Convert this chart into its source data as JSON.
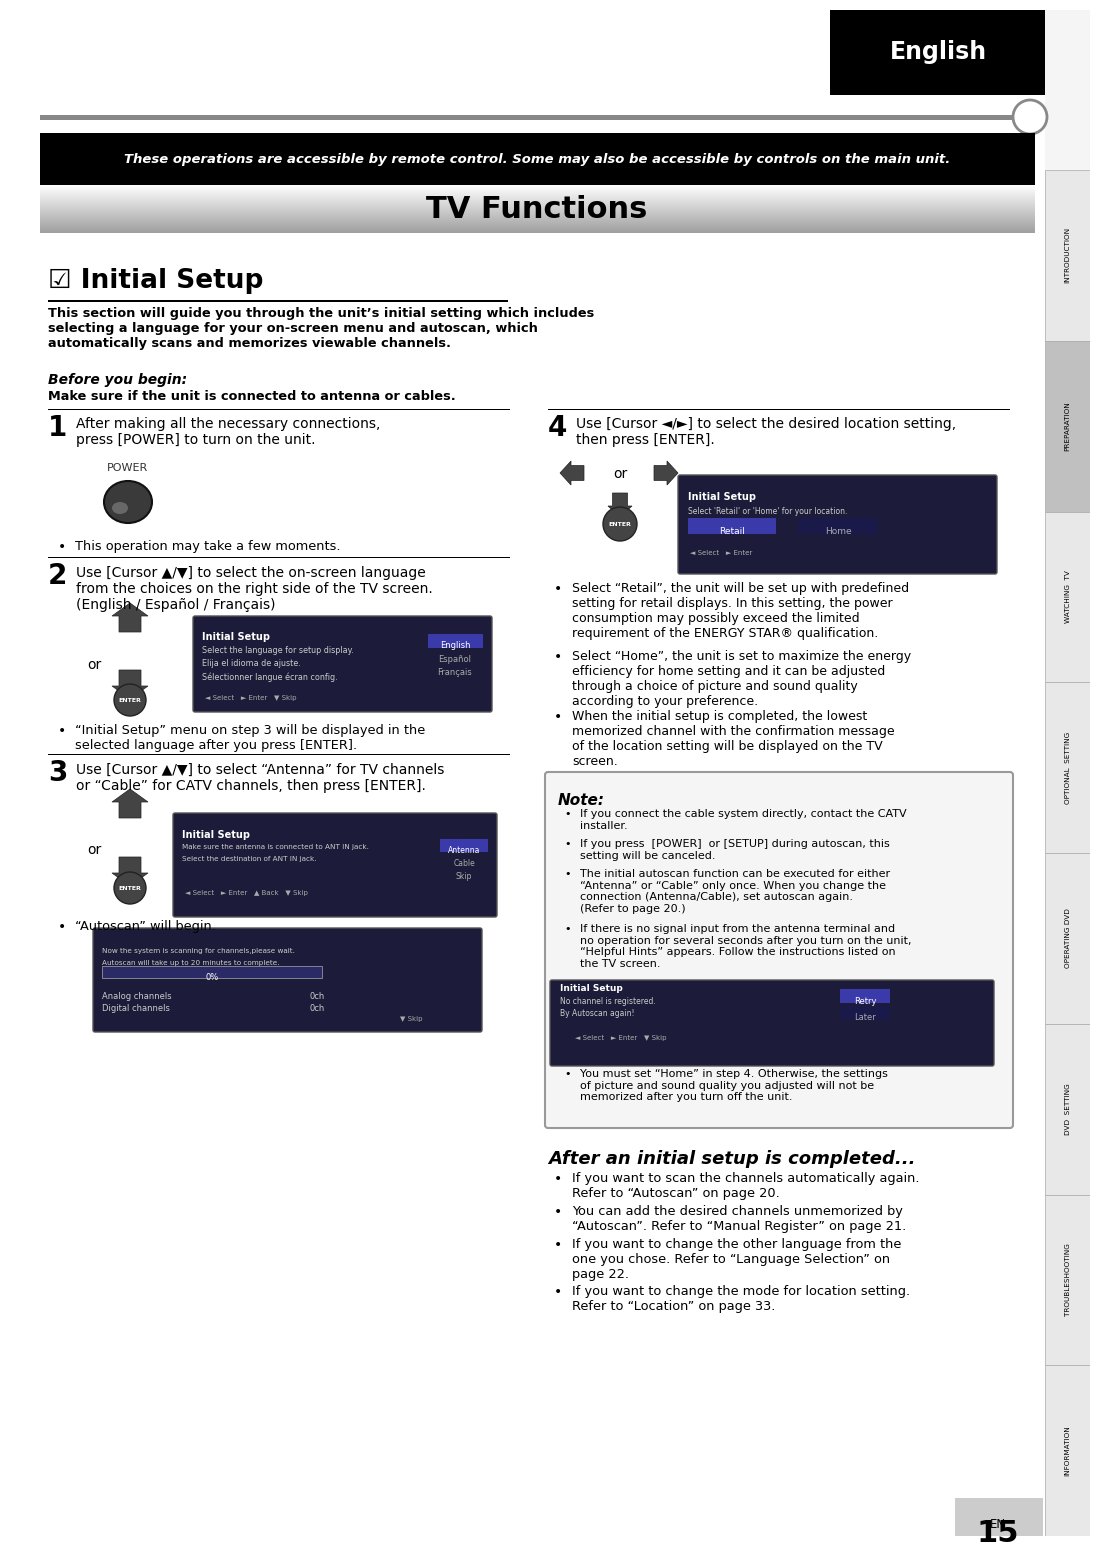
{
  "page_bg": "#ffffff",
  "sidebar_labels": [
    "INTRODUCTION",
    "PREPARATION",
    "WATCHING  TV",
    "OPTIONAL  SETTING",
    "OPERATING DVD",
    "DVD  SETTING",
    "TROUBLESHOOTING",
    "INFORMATION"
  ],
  "top_bar_text": "English",
  "header_bar_text": "These operations are accessible by remote control. Some may also be accessible by controls on the main unit.",
  "tv_functions_title": "TV Functions",
  "section_title": "☑ Initial Setup",
  "intro_text": "This section will guide you through the unit’s initial setting which includes\nselecting a language for your on-screen menu and autoscan, which\nautomatically scans and memorizes viewable channels.",
  "before_begin_title": "Before you begin:",
  "before_begin_text": "Make sure if the unit is connected to antenna or cables.",
  "step1_text": "After making all the necessary connections,\npress [POWER] to turn on the unit.",
  "step1_bullet": "This operation may take a few moments.",
  "step2_text": "Use [Cursor ▲/▼] to select the on-screen language\nfrom the choices on the right side of the TV screen.\n(English / Español / Français)",
  "step2_bullet": "“Initial Setup” menu on step 3 will be displayed in the\nselected language after you press [ENTER].",
  "step3_text": "Use [Cursor ▲/▼] to select “Antenna” for TV channels\nor “Cable” for CATV channels, then press [ENTER].",
  "step3_bullet": "“Autoscan” will begin.",
  "step4_text": "Use [Cursor ◄/►] to select the desired location setting,\nthen press [ENTER].",
  "bullet4a": "Select “Retail”, the unit will be set up with predefined\nsetting for retail displays. In this setting, the power\nconsumption may possibly exceed the limited\nrequirement of the ENERGY STAR® qualification.",
  "bullet4b": "Select “Home”, the unit is set to maximize the energy\nefficiency for home setting and it can be adjusted\nthrough a choice of picture and sound quality\naccording to your preference.",
  "bullet4c": "When the initial setup is completed, the lowest\nmemorized channel with the confirmation message\nof the location setting will be displayed on the TV\nscreen.",
  "note_title": "Note:",
  "note_lines": [
    "If you connect the cable system directly, contact the CATV\ninstaller.",
    "If you press  [POWER]  or [SETUP] during autoscan, this\nsetting will be canceled.",
    "The initial autoscan function can be executed for either\n“Antenna” or “Cable” only once. When you change the\nconnection (Antenna/Cable), set autoscan again.\n(Refer to page 20.)",
    "If there is no signal input from the antenna terminal and\nno operation for several seconds after you turn on the unit,\n“Helpful Hints” appears. Follow the instructions listed on\nthe TV screen."
  ],
  "note_last_bullet": "You must set “Home” in step 4. Otherwise, the settings\nof picture and sound quality you adjusted will not be\nmemorized after you turn off the unit.",
  "after_title": "After an initial setup is completed...",
  "after_bullets": [
    "If you want to scan the channels automatically again.\nRefer to “Autoscan” on page 20.",
    "You can add the desired channels unmemorized by\n“Autoscan”. Refer to “Manual Register” on page 21.",
    "If you want to change the other language from the\none you chose. Refer to “Language Selection” on\npage 22.",
    "If you want to change the mode for location setting.\nRefer to “Location” on page 33."
  ],
  "page_number": "15",
  "page_number_sub": "EN"
}
